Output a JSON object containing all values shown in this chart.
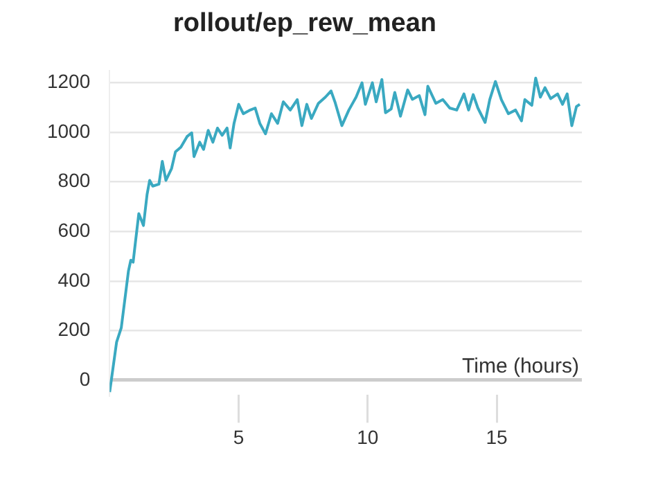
{
  "chart_data": {
    "type": "line",
    "title": "rollout/ep_rew_mean",
    "xlabel": "Time (hours)",
    "x": [
      0,
      0.09,
      0.27,
      0.45,
      0.73,
      0.82,
      0.91,
      1.0,
      1.13,
      1.31,
      1.45,
      1.55,
      1.67,
      1.91,
      2.04,
      2.18,
      2.4,
      2.55,
      2.76,
      3.0,
      3.18,
      3.27,
      3.49,
      3.64,
      3.82,
      4.0,
      4.18,
      4.36,
      4.55,
      4.67,
      4.82,
      5.0,
      5.18,
      5.45,
      5.64,
      5.82,
      6.04,
      6.27,
      6.51,
      6.73,
      7.0,
      7.27,
      7.45,
      7.64,
      7.82,
      8.09,
      8.36,
      8.58,
      8.73,
      9.0,
      9.27,
      9.55,
      9.78,
      9.91,
      10.18,
      10.33,
      10.55,
      10.69,
      10.91,
      11.05,
      11.27,
      11.55,
      11.73,
      12.0,
      12.22,
      12.33,
      12.64,
      12.91,
      13.18,
      13.45,
      13.73,
      13.91,
      14.09,
      14.27,
      14.55,
      14.73,
      14.95,
      15.18,
      15.45,
      15.73,
      15.96,
      16.09,
      16.36,
      16.51,
      16.69,
      16.87,
      17.09,
      17.36,
      17.55,
      17.73,
      17.91,
      18.09,
      18.22
    ],
    "series": [
      {
        "color": "#3aa9c1",
        "values": [
          -48,
          19,
          154,
          211,
          441,
          484,
          476,
          557,
          672,
          624,
          749,
          806,
          783,
          791,
          883,
          806,
          854,
          921,
          940,
          983,
          998,
          902,
          960,
          931,
          1008,
          960,
          1017,
          988,
          1017,
          937,
          1036,
          1113,
          1075,
          1090,
          1098,
          1036,
          994,
          1075,
          1036,
          1123,
          1090,
          1132,
          1027,
          1113,
          1056,
          1117,
          1142,
          1167,
          1123,
          1027,
          1090,
          1142,
          1200,
          1113,
          1200,
          1123,
          1213,
          1079,
          1094,
          1161,
          1065,
          1171,
          1133,
          1148,
          1071,
          1186,
          1117,
          1132,
          1098,
          1090,
          1155,
          1090,
          1152,
          1098,
          1040,
          1132,
          1205,
          1132,
          1075,
          1090,
          1046,
          1132,
          1109,
          1219,
          1142,
          1180,
          1136,
          1155,
          1113,
          1155,
          1027,
          1104,
          1113
        ]
      }
    ],
    "xlim": [
      0,
      18.3
    ],
    "ylim": [
      -60,
      1250
    ],
    "xticks": [
      5,
      10,
      15
    ],
    "yticks": [
      0,
      200,
      400,
      600,
      800,
      1000,
      1200
    ],
    "grid": "y",
    "legend": false,
    "marker": "none",
    "line_style": "solid"
  }
}
